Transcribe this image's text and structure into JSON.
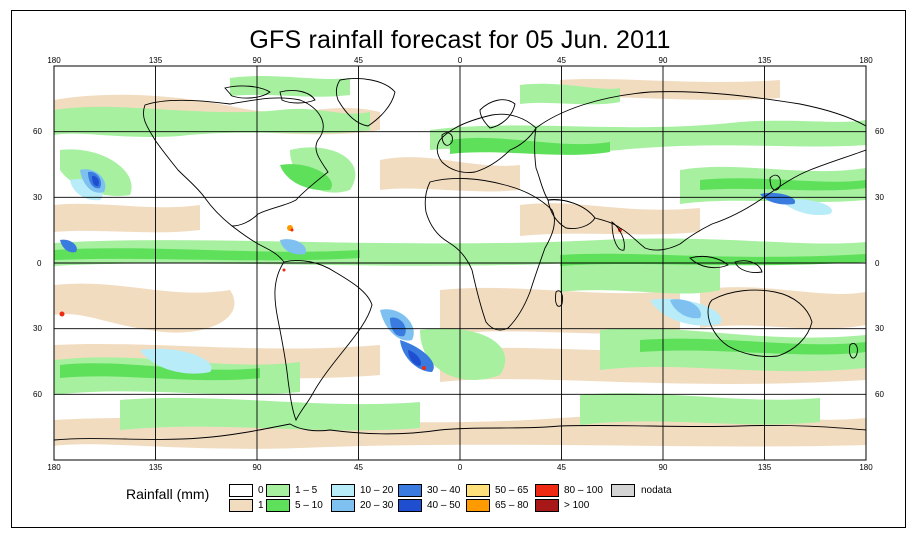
{
  "title": "GFS rainfall forecast for 05 Jun. 2011",
  "map": {
    "projection": "equirectangular",
    "lon_range": [
      -180,
      180
    ],
    "lat_range": [
      -90,
      90
    ],
    "gridlines": true,
    "lon_ticks": [
      "180",
      "135",
      "90",
      "45",
      "0",
      "45",
      "90",
      "135",
      "180"
    ],
    "lat_ticks": [
      "60",
      "30",
      "0",
      "30",
      "60"
    ],
    "background_color": "#ffffff",
    "coastline_color": "#000000"
  },
  "legend": {
    "title": "Rainfall (mm)",
    "items": [
      {
        "label": "0",
        "color": "#ffffff"
      },
      {
        "label": "1",
        "color": "#f2dcc0"
      },
      {
        "label": "1 – 5",
        "color": "#a6f0a0"
      },
      {
        "label": "5 – 10",
        "color": "#5fe05a"
      },
      {
        "label": "10 – 20",
        "color": "#b8ecf8"
      },
      {
        "label": "20 – 30",
        "color": "#7ec0f0"
      },
      {
        "label": "30 – 40",
        "color": "#3a7be0"
      },
      {
        "label": "40 – 50",
        "color": "#1f4fd0"
      },
      {
        "label": "50 – 65",
        "color": "#ffe07a"
      },
      {
        "label": "65 – 80",
        "color": "#ff9a00"
      },
      {
        "label": "80 – 100",
        "color": "#ee2a12"
      },
      {
        "label": "> 100",
        "color": "#a81818"
      },
      {
        "label": "nodata",
        "color": "#d4d4d4"
      }
    ]
  }
}
